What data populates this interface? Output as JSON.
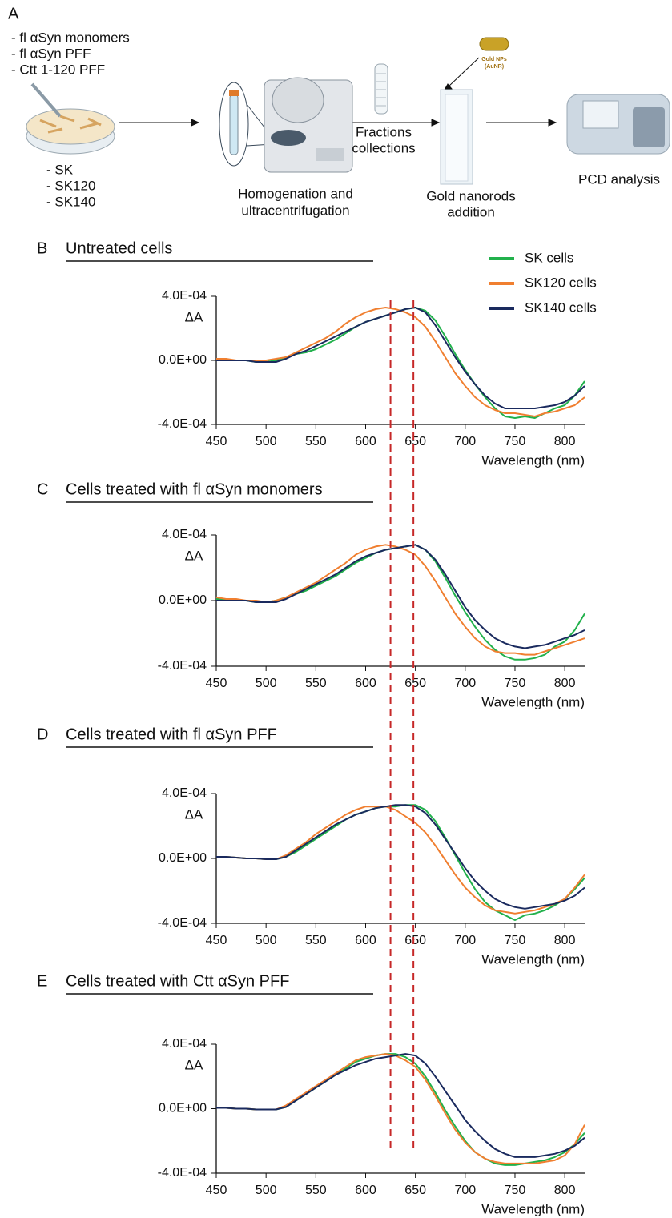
{
  "diagram": {
    "panel": "A",
    "treatments": [
      "- fl αSyn monomers",
      "- fl αSyn  PFF",
      "- Ctt 1-120 PFF"
    ],
    "cell_lines": [
      "- SK",
      "- SK120",
      "- SK140"
    ],
    "step2": [
      "Homogenation and",
      "ultracentrifugation"
    ],
    "step3": [
      "Fractions",
      "collections"
    ],
    "nanoparticle": [
      "Gold NPs",
      "(AuNR)"
    ],
    "step4": [
      "Gold nanorods",
      "addition"
    ],
    "step5": "PCD analysis"
  },
  "reference_lines": {
    "x": [
      625,
      648
    ],
    "color": "#c62828"
  },
  "chart_data": [
    {
      "type": "line",
      "panel": "B",
      "title": "Untreated cells",
      "ylabel": "ΔA",
      "xlabel": "Wavelength (nm)",
      "x": [
        450,
        460,
        470,
        480,
        490,
        500,
        510,
        520,
        530,
        540,
        550,
        560,
        570,
        580,
        590,
        600,
        610,
        620,
        630,
        640,
        650,
        660,
        670,
        680,
        690,
        700,
        710,
        720,
        730,
        740,
        750,
        760,
        770,
        780,
        790,
        800,
        810,
        820
      ],
      "xlim": [
        450,
        820
      ],
      "xticks": [
        450,
        500,
        550,
        600,
        650,
        700,
        750,
        800
      ],
      "ylim": [
        -0.0004,
        0.0004
      ],
      "yticks": [
        {
          "value": -0.0004,
          "label": "-4.0E-04"
        },
        {
          "value": 0,
          "label": "0.0E+00"
        },
        {
          "value": 0.0004,
          "label": "4.0E-04"
        }
      ],
      "legend": "upper right",
      "series": [
        {
          "name": "SK cells",
          "color": "#22b14c",
          "values": [
            0,
            0,
            0,
            0,
            -1e-05,
            -1e-05,
            0,
            2e-05,
            4e-05,
            5e-05,
            7e-05,
            0.0001,
            0.00013,
            0.00017,
            0.00021,
            0.00024,
            0.00026,
            0.00028,
            0.0003,
            0.00032,
            0.00033,
            0.00031,
            0.00025,
            0.00015,
            4e-05,
            -6e-05,
            -0.00015,
            -0.00023,
            -0.0003,
            -0.00035,
            -0.00036,
            -0.00035,
            -0.00036,
            -0.00033,
            -0.0003,
            -0.00028,
            -0.00022,
            -0.00013
          ]
        },
        {
          "name": "SK120 cells",
          "color": "#f07f30",
          "values": [
            1e-05,
            1e-05,
            0,
            0,
            0,
            0,
            1e-05,
            2e-05,
            5e-05,
            8e-05,
            0.00011,
            0.00014,
            0.00018,
            0.00023,
            0.00027,
            0.0003,
            0.00032,
            0.00033,
            0.00032,
            0.0003,
            0.00027,
            0.00021,
            0.00012,
            2e-05,
            -8e-05,
            -0.00016,
            -0.00023,
            -0.00028,
            -0.00031,
            -0.00033,
            -0.00033,
            -0.00034,
            -0.00035,
            -0.00033,
            -0.00032,
            -0.0003,
            -0.00028,
            -0.00023
          ]
        },
        {
          "name": "SK140 cells",
          "color": "#1a2a5e",
          "values": [
            0,
            0,
            0,
            0,
            -1e-05,
            -1e-05,
            -1e-05,
            1e-05,
            4e-05,
            6e-05,
            9e-05,
            0.00012,
            0.00015,
            0.00018,
            0.00021,
            0.00024,
            0.00026,
            0.00028,
            0.0003,
            0.00032,
            0.00033,
            0.0003,
            0.00022,
            0.00012,
            2e-05,
            -7e-05,
            -0.00015,
            -0.00022,
            -0.00027,
            -0.0003,
            -0.0003,
            -0.0003,
            -0.0003,
            -0.00029,
            -0.00028,
            -0.00026,
            -0.00022,
            -0.00016
          ]
        }
      ]
    },
    {
      "type": "line",
      "panel": "C",
      "title": "Cells treated with fl αSyn monomers",
      "ylabel": "ΔA",
      "xlabel": "Wavelength (nm)",
      "x": [
        450,
        460,
        470,
        480,
        490,
        500,
        510,
        520,
        530,
        540,
        550,
        560,
        570,
        580,
        590,
        600,
        610,
        620,
        630,
        640,
        650,
        660,
        670,
        680,
        690,
        700,
        710,
        720,
        730,
        740,
        750,
        760,
        770,
        780,
        790,
        800,
        810,
        820
      ],
      "xlim": [
        450,
        820
      ],
      "xticks": [
        450,
        500,
        550,
        600,
        650,
        700,
        750,
        800
      ],
      "ylim": [
        -0.0004,
        0.0004
      ],
      "yticks": [
        {
          "value": -0.0004,
          "label": "-4.0E-04"
        },
        {
          "value": 0,
          "label": "0.0E+00"
        },
        {
          "value": 0.0004,
          "label": "4.0E-04"
        }
      ],
      "series": [
        {
          "color": "#22b14c",
          "values": [
            1e-05,
            1e-05,
            0,
            0,
            -1e-05,
            -1e-05,
            0,
            2e-05,
            4e-05,
            6e-05,
            9e-05,
            0.00012,
            0.00015,
            0.00019,
            0.00023,
            0.00026,
            0.00029,
            0.00031,
            0.00032,
            0.00033,
            0.00034,
            0.00031,
            0.00024,
            0.00014,
            3e-05,
            -7e-05,
            -0.00016,
            -0.00024,
            -0.0003,
            -0.00034,
            -0.00036,
            -0.00036,
            -0.00035,
            -0.00033,
            -0.00028,
            -0.00025,
            -0.00018,
            -8e-05
          ]
        },
        {
          "color": "#f07f30",
          "values": [
            2e-05,
            1e-05,
            1e-05,
            0,
            0,
            -1e-05,
            0,
            2e-05,
            5e-05,
            8e-05,
            0.00011,
            0.00015,
            0.00019,
            0.00023,
            0.00028,
            0.00031,
            0.00033,
            0.00034,
            0.00033,
            0.00031,
            0.00028,
            0.00021,
            0.00012,
            2e-05,
            -8e-05,
            -0.00016,
            -0.00023,
            -0.00028,
            -0.00031,
            -0.00032,
            -0.00032,
            -0.00033,
            -0.00033,
            -0.00031,
            -0.00029,
            -0.00027,
            -0.00025,
            -0.00023
          ]
        },
        {
          "color": "#1a2a5e",
          "values": [
            0,
            0,
            0,
            0,
            -1e-05,
            -1e-05,
            -1e-05,
            1e-05,
            4e-05,
            7e-05,
            0.0001,
            0.00013,
            0.00016,
            0.0002,
            0.00024,
            0.00027,
            0.00029,
            0.00031,
            0.00032,
            0.00033,
            0.00034,
            0.00031,
            0.00025,
            0.00016,
            6e-05,
            -4e-05,
            -0.00012,
            -0.00018,
            -0.00023,
            -0.00026,
            -0.00028,
            -0.00029,
            -0.00028,
            -0.00027,
            -0.00025,
            -0.00023,
            -0.00021,
            -0.00018
          ]
        }
      ]
    },
    {
      "type": "line",
      "panel": "D",
      "title": "Cells treated with fl αSyn PFF",
      "ylabel": "ΔA",
      "xlabel": "Wavelength (nm)",
      "x": [
        450,
        460,
        470,
        480,
        490,
        500,
        510,
        520,
        530,
        540,
        550,
        560,
        570,
        580,
        590,
        600,
        610,
        620,
        630,
        640,
        650,
        660,
        670,
        680,
        690,
        700,
        710,
        720,
        730,
        740,
        750,
        760,
        770,
        780,
        790,
        800,
        810,
        820
      ],
      "xlim": [
        450,
        820
      ],
      "xticks": [
        450,
        500,
        550,
        600,
        650,
        700,
        750,
        800
      ],
      "ylim": [
        -0.0004,
        0.0004
      ],
      "yticks": [
        {
          "value": -0.0004,
          "label": "-4.0E-04"
        },
        {
          "value": 0,
          "label": "0.0E+00"
        },
        {
          "value": 0.0004,
          "label": "4.0E-04"
        }
      ],
      "series": [
        {
          "color": "#22b14c",
          "values": [
            1e-05,
            1e-05,
            5e-06,
            0,
            0,
            -5e-06,
            -5e-06,
            1e-05,
            4e-05,
            8e-05,
            0.00012,
            0.00016,
            0.0002,
            0.00024,
            0.00027,
            0.00029,
            0.00031,
            0.00032,
            0.00032,
            0.00033,
            0.00033,
            0.0003,
            0.00023,
            0.00013,
            2e-05,
            -9e-05,
            -0.00019,
            -0.00027,
            -0.00032,
            -0.00035,
            -0.00038,
            -0.00035,
            -0.00034,
            -0.00032,
            -0.00029,
            -0.00025,
            -0.00019,
            -0.00012
          ]
        },
        {
          "color": "#f07f30",
          "values": [
            1e-05,
            1e-05,
            5e-06,
            0,
            0,
            -5e-06,
            -5e-06,
            2e-05,
            6e-05,
            0.0001,
            0.00015,
            0.00019,
            0.00023,
            0.00027,
            0.0003,
            0.00032,
            0.00032,
            0.00032,
            0.0003,
            0.00026,
            0.00022,
            0.00016,
            8e-05,
            -1e-05,
            -0.0001,
            -0.00018,
            -0.00024,
            -0.00029,
            -0.00032,
            -0.00033,
            -0.00034,
            -0.00033,
            -0.00032,
            -0.0003,
            -0.00028,
            -0.00025,
            -0.00018,
            -0.0001
          ]
        },
        {
          "color": "#1a2a5e",
          "values": [
            1e-05,
            1e-05,
            5e-06,
            0,
            0,
            -5e-06,
            -5e-06,
            1e-05,
            5e-05,
            9e-05,
            0.00013,
            0.00017,
            0.00021,
            0.00024,
            0.00027,
            0.00029,
            0.00031,
            0.00032,
            0.00033,
            0.00033,
            0.00032,
            0.00028,
            0.00021,
            0.00012,
            3e-05,
            -6e-05,
            -0.00014,
            -0.0002,
            -0.00025,
            -0.00028,
            -0.0003,
            -0.00031,
            -0.0003,
            -0.00029,
            -0.00028,
            -0.00026,
            -0.00023,
            -0.00018
          ]
        }
      ]
    },
    {
      "type": "line",
      "panel": "E",
      "title": "Cells treated with Ctt αSyn PFF",
      "ylabel": "ΔA",
      "xlabel": "Wavelength (nm)",
      "x": [
        450,
        460,
        470,
        480,
        490,
        500,
        510,
        520,
        530,
        540,
        550,
        560,
        570,
        580,
        590,
        600,
        610,
        620,
        630,
        640,
        650,
        660,
        670,
        680,
        690,
        700,
        710,
        720,
        730,
        740,
        750,
        760,
        770,
        780,
        790,
        800,
        810,
        820
      ],
      "xlim": [
        450,
        820
      ],
      "xticks": [
        450,
        500,
        550,
        600,
        650,
        700,
        750,
        800
      ],
      "ylim": [
        -0.0004,
        0.0004
      ],
      "yticks": [
        {
          "value": -0.0004,
          "label": "-4.0E-04"
        },
        {
          "value": 0,
          "label": "0.0E+00"
        },
        {
          "value": 0.0004,
          "label": "4.0E-04"
        }
      ],
      "series": [
        {
          "color": "#22b14c",
          "values": [
            5e-06,
            5e-06,
            0,
            0,
            -5e-06,
            -5e-06,
            -5e-06,
            1e-05,
            5e-05,
            9e-05,
            0.00013,
            0.00017,
            0.00021,
            0.00025,
            0.00029,
            0.00031,
            0.00033,
            0.00034,
            0.00034,
            0.00032,
            0.00028,
            0.0002,
            0.0001,
            -1e-05,
            -0.00011,
            -0.0002,
            -0.00027,
            -0.00031,
            -0.00034,
            -0.00035,
            -0.00035,
            -0.00034,
            -0.00033,
            -0.00032,
            -0.0003,
            -0.00027,
            -0.00022,
            -0.00015
          ]
        },
        {
          "color": "#f07f30",
          "values": [
            5e-06,
            5e-06,
            0,
            0,
            -5e-06,
            -5e-06,
            -5e-06,
            2e-05,
            6e-05,
            0.0001,
            0.00014,
            0.00018,
            0.00022,
            0.00026,
            0.0003,
            0.00032,
            0.00033,
            0.00034,
            0.00033,
            0.0003,
            0.00026,
            0.00018,
            8e-05,
            -3e-05,
            -0.00013,
            -0.00021,
            -0.00027,
            -0.00031,
            -0.00033,
            -0.00034,
            -0.00034,
            -0.00034,
            -0.00034,
            -0.00033,
            -0.00032,
            -0.00029,
            -0.00022,
            -0.0001
          ]
        },
        {
          "color": "#1a2a5e",
          "values": [
            5e-06,
            5e-06,
            0,
            0,
            -5e-06,
            -5e-06,
            -5e-06,
            1e-05,
            5e-05,
            9e-05,
            0.00013,
            0.00017,
            0.00021,
            0.00024,
            0.00027,
            0.00029,
            0.00031,
            0.00032,
            0.00033,
            0.00034,
            0.00033,
            0.00028,
            0.0002,
            0.00011,
            2e-05,
            -7e-05,
            -0.00014,
            -0.0002,
            -0.00025,
            -0.00028,
            -0.0003,
            -0.0003,
            -0.0003,
            -0.00029,
            -0.00028,
            -0.00026,
            -0.00023,
            -0.00018
          ]
        }
      ]
    }
  ]
}
